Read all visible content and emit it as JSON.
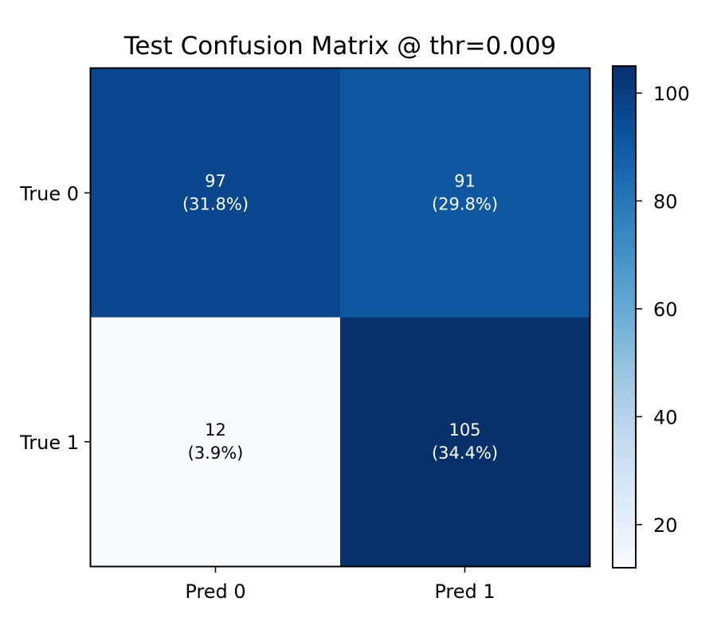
{
  "chart_data": {
    "type": "heatmap",
    "title": "Test Confusion Matrix @ thr=0.009",
    "xlabel": "",
    "ylabel": "",
    "x_categories": [
      "Pred 0",
      "Pred 1"
    ],
    "y_categories": [
      "True 0",
      "True 1"
    ],
    "values": [
      [
        97,
        91
      ],
      [
        12,
        105
      ]
    ],
    "cell_labels": [
      [
        "97\n(31.8%)",
        "91\n(29.8%)"
      ],
      [
        "12\n(3.9%)",
        "105\n(34.4%)"
      ]
    ],
    "colormap": "Blues",
    "colorbar": {
      "min": 12,
      "max": 105,
      "ticks": [
        20,
        40,
        60,
        80,
        100
      ],
      "tick_labels": [
        "20",
        "40",
        "60",
        "80",
        "100"
      ]
    },
    "grid": false,
    "legend": "colorbar-right"
  }
}
